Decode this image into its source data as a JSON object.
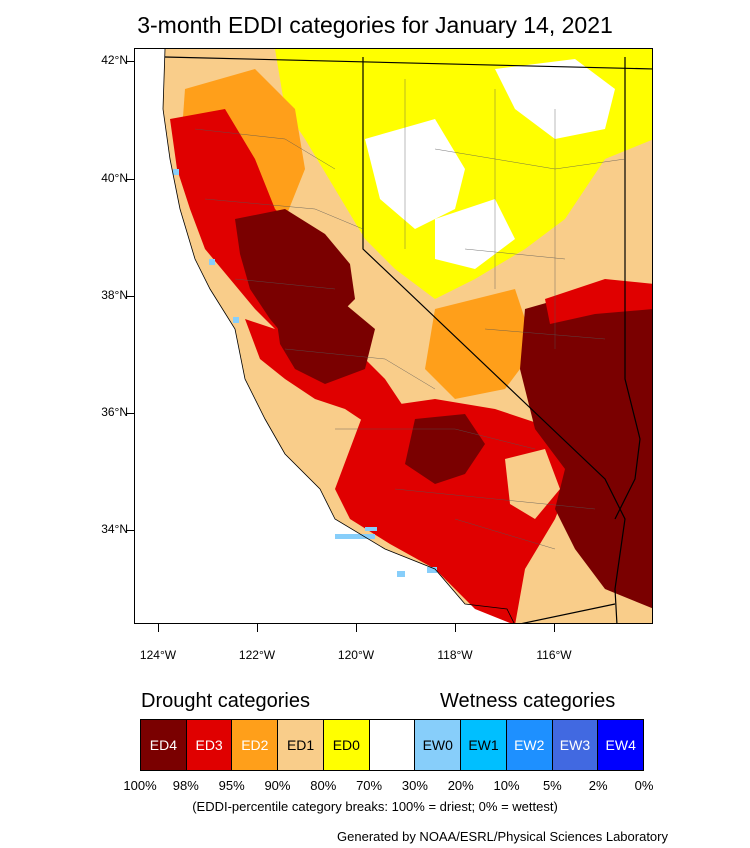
{
  "title": "3-month EDDI categories for January 14, 2021",
  "map": {
    "lat_labels": [
      "42°N",
      "40°N",
      "38°N",
      "36°N",
      "34°N"
    ],
    "lon_labels": [
      "124°W",
      "122°W",
      "120°W",
      "118°W",
      "116°W"
    ],
    "extent": {
      "lon_min": -124.5,
      "lon_max": -114.0,
      "lat_min": 32.4,
      "lat_max": 42.2
    },
    "palette": {
      "ED4": "#7a0000",
      "ED3": "#e00000",
      "ED2": "#ff9f1a",
      "ED1": "#f9cd8a",
      "ED0": "#ffff00",
      "NONE": "#ffffff",
      "EW0": "#87cefa",
      "EW1": "#00bfff",
      "EW2": "#1e90ff",
      "EW3": "#4169e1",
      "EW4": "#0000ff"
    }
  },
  "legend": {
    "drought_heading": "Drought categories",
    "wetness_heading": "Wetness categories",
    "categories": [
      {
        "label": "ED4",
        "color": "#7a0000",
        "text_color": "#ffffff"
      },
      {
        "label": "ED3",
        "color": "#e00000",
        "text_color": "#ffffff"
      },
      {
        "label": "ED2",
        "color": "#ff9f1a",
        "text_color": "#ffffff"
      },
      {
        "label": "ED1",
        "color": "#f9cd8a",
        "text_color": "#000000"
      },
      {
        "label": "ED0",
        "color": "#ffff00",
        "text_color": "#000000"
      },
      {
        "label": "",
        "color": "#ffffff",
        "text_color": "#000000"
      },
      {
        "label": "EW0",
        "color": "#87cefa",
        "text_color": "#000000"
      },
      {
        "label": "EW1",
        "color": "#00bfff",
        "text_color": "#000000"
      },
      {
        "label": "EW2",
        "color": "#1e90ff",
        "text_color": "#ffffff"
      },
      {
        "label": "EW3",
        "color": "#4169e1",
        "text_color": "#ffffff"
      },
      {
        "label": "EW4",
        "color": "#0000ff",
        "text_color": "#ffffff"
      }
    ],
    "breaks": [
      "100%",
      "98%",
      "95%",
      "90%",
      "80%",
      "70%",
      "30%",
      "20%",
      "10%",
      "5%",
      "2%",
      "0%"
    ],
    "note": "(EDDI-percentile category breaks: 100% = driest; 0% = wettest)"
  },
  "credit": "Generated by NOAA/ESRL/Physical Sciences Laboratory"
}
